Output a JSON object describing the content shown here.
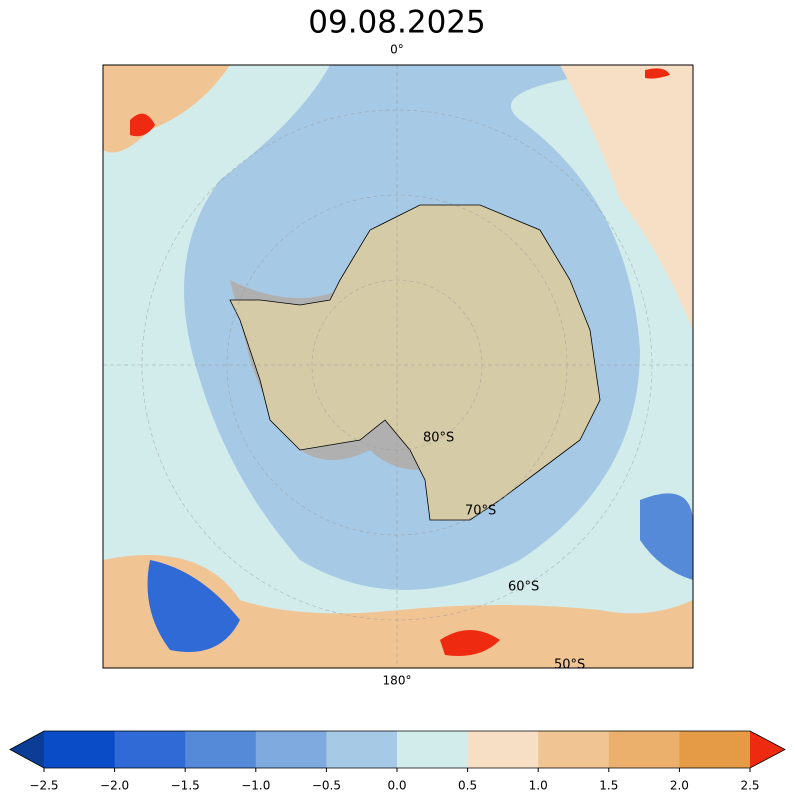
{
  "title": "09.08.2025",
  "map": {
    "labels": [
      "0°",
      "180°",
      "80°S",
      "70°S",
      "60°S",
      "50°S"
    ]
  },
  "colorbar": {
    "ticks": [
      {
        "value": -2.5,
        "label": "−2.5"
      },
      {
        "value": -2.0,
        "label": "−2.0"
      },
      {
        "value": -1.5,
        "label": "−1.5"
      },
      {
        "value": -1.0,
        "label": "−1.0"
      },
      {
        "value": -0.5,
        "label": "−0.5"
      },
      {
        "value": 0,
        "label": "0.0"
      },
      0.5,
      {
        "value": 1.0,
        "label": "1.0"
      },
      1.5,
      {
        "value": 2.0,
        "label": "2.0"
      },
      2.5
    ],
    "colors": [
      "#0a4bc8",
      "#2f6ad6",
      "#558ad9",
      "#7eaadf",
      "#a6c9e5",
      "#d2ecec",
      "#f6dfc4",
      "#f1c494",
      "#ebb06b",
      "#e59a45"
    ],
    "extend_colors": [
      "#0b3d96",
      "#ee2a10"
    ]
  }
}
